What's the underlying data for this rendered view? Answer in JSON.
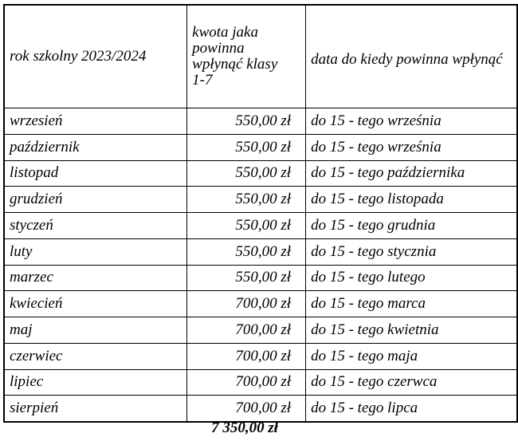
{
  "header": {
    "col1": "rok szkolny 2023/2024",
    "col2": " kwota jaka powinna wpłynąć klasy 1-7",
    "col3": "data do kiedy powinna wpłynąć"
  },
  "rows": [
    {
      "month": "wrzesień",
      "amount": "550,00 zł",
      "deadline": "do 15 - tego  września"
    },
    {
      "month": "październik",
      "amount": "550,00 zł",
      "deadline": "do 15 - tego  września"
    },
    {
      "month": "listopad",
      "amount": "550,00 zł",
      "deadline": "do 15 - tego  października"
    },
    {
      "month": "grudzień",
      "amount": "550,00 zł",
      "deadline": "do 15 - tego listopada"
    },
    {
      "month": "styczeń",
      "amount": "550,00 zł",
      "deadline": "do 15 - tego grudnia"
    },
    {
      "month": "luty",
      "amount": "550,00 zł",
      "deadline": "do 15 - tego stycznia"
    },
    {
      "month": "marzec",
      "amount": "550,00 zł",
      "deadline": "do 15 - tego lutego"
    },
    {
      "month": "kwiecień",
      "amount": "700,00 zł",
      "deadline": "do 15 - tego marca"
    },
    {
      "month": "maj",
      "amount": "700,00 zł",
      "deadline": "do 15 - tego kwietnia"
    },
    {
      "month": "czerwiec",
      "amount": "700,00 zł",
      "deadline": "do 15 - tego maja"
    },
    {
      "month": "lipiec",
      "amount": "700,00 zł",
      "deadline": "do 15 - tego czerwca"
    },
    {
      "month": "sierpień",
      "amount": "700,00 zł",
      "deadline": "do 15 - tego lipca"
    }
  ],
  "total": "7 350,00 zł"
}
